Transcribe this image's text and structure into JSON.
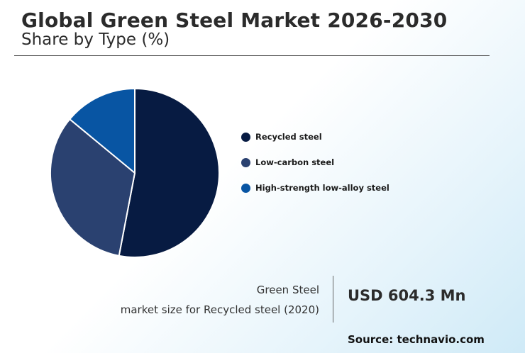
{
  "header": {
    "title": "Global Green Steel Market 2026-2030",
    "subtitle": "Share by Type (%)"
  },
  "chart_data": {
    "type": "pie",
    "categories": [
      "Recycled steel",
      "Low-carbon steel",
      "High-strength low-alloy steel"
    ],
    "values": [
      53,
      33,
      14
    ],
    "colors": [
      "#071b42",
      "#2a4170",
      "#0855a3"
    ],
    "legend": "right"
  },
  "info": {
    "caption_line1": "Green Steel",
    "caption_line2": "market size for Recycled steel (2020)",
    "value": "USD 604.3 Mn",
    "source": "Source: technavio.com"
  }
}
